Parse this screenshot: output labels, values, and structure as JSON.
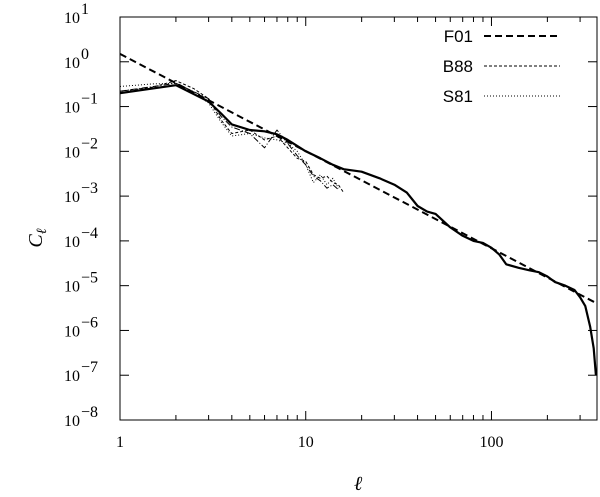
{
  "chart_data": {
    "type": "line",
    "title": "",
    "xlabel": "ℓ",
    "ylabel": "C",
    "ylabel_sub": "ℓ",
    "xscale": "log",
    "yscale": "log",
    "xlim": [
      1,
      370
    ],
    "ylim": [
      1e-08,
      10
    ],
    "grid": false,
    "legend_position": "top-right",
    "x_ticks": [
      {
        "value": 1,
        "label": "1"
      },
      {
        "value": 10,
        "label": "10"
      },
      {
        "value": 100,
        "label": "100"
      }
    ],
    "y_ticks": [
      {
        "value": 1e-08,
        "mantissa": "10",
        "exponent": "−8"
      },
      {
        "value": 1e-07,
        "mantissa": "10",
        "exponent": "−7"
      },
      {
        "value": 1e-06,
        "mantissa": "10",
        "exponent": "−6"
      },
      {
        "value": 1e-05,
        "mantissa": "10",
        "exponent": "−5"
      },
      {
        "value": 0.0001,
        "mantissa": "10",
        "exponent": "−4"
      },
      {
        "value": 0.001,
        "mantissa": "10",
        "exponent": "−3"
      },
      {
        "value": 0.01,
        "mantissa": "10",
        "exponent": "−2"
      },
      {
        "value": 0.1,
        "mantissa": "10",
        "exponent": "−1"
      },
      {
        "value": 1,
        "mantissa": "10",
        "exponent": "0"
      },
      {
        "value": 10,
        "mantissa": "10",
        "exponent": "1"
      }
    ],
    "series": [
      {
        "name": "",
        "style": "solid-thick",
        "points": [
          [
            1,
            0.2
          ],
          [
            2,
            0.3
          ],
          [
            3,
            0.13
          ],
          [
            3.5,
            0.07
          ],
          [
            4,
            0.04
          ],
          [
            5,
            0.03
          ],
          [
            6,
            0.028
          ],
          [
            7,
            0.024
          ],
          [
            8,
            0.018
          ],
          [
            10,
            0.01
          ],
          [
            12,
            0.007
          ],
          [
            14,
            0.005
          ],
          [
            16,
            0.004
          ],
          [
            20,
            0.0035
          ],
          [
            25,
            0.0025
          ],
          [
            30,
            0.0018
          ],
          [
            35,
            0.0012
          ],
          [
            40,
            0.0006
          ],
          [
            45,
            0.00045
          ],
          [
            50,
            0.0004
          ],
          [
            60,
            0.0002
          ],
          [
            70,
            0.00013
          ],
          [
            80,
            0.0001
          ],
          [
            90,
            9e-05
          ],
          [
            100,
            7e-05
          ],
          [
            110,
            5e-05
          ],
          [
            120,
            3e-05
          ],
          [
            140,
            2.5e-05
          ],
          [
            160,
            2.2e-05
          ],
          [
            180,
            2e-05
          ],
          [
            200,
            1.6e-05
          ],
          [
            220,
            1.2e-05
          ],
          [
            250,
            1e-05
          ],
          [
            280,
            8e-06
          ],
          [
            300,
            5.5e-06
          ],
          [
            320,
            3.5e-06
          ],
          [
            340,
            1.2e-06
          ],
          [
            355,
            4e-07
          ],
          [
            365,
            1e-07
          ]
        ]
      },
      {
        "name": "F01",
        "style": "long-dash",
        "points": [
          [
            1,
            1.5
          ],
          [
            370,
            4e-06
          ]
        ]
      },
      {
        "name": "B88",
        "style": "short-dash",
        "points": [
          [
            1,
            0.22
          ],
          [
            1.5,
            0.27
          ],
          [
            2,
            0.38
          ],
          [
            2.5,
            0.25
          ],
          [
            3,
            0.15
          ],
          [
            3.5,
            0.05
          ],
          [
            4,
            0.025
          ],
          [
            5,
            0.03
          ],
          [
            6,
            0.018
          ],
          [
            7,
            0.022
          ],
          [
            8,
            0.012
          ],
          [
            9,
            0.007
          ],
          [
            10,
            0.006
          ],
          [
            11,
            0.003
          ],
          [
            12,
            0.0025
          ],
          [
            13,
            0.0028
          ],
          [
            14,
            0.002
          ],
          [
            15,
            0.0018
          ],
          [
            16,
            0.0012
          ]
        ]
      },
      {
        "name": "S81",
        "style": "dotted",
        "points": [
          [
            1,
            0.28
          ],
          [
            1.5,
            0.32
          ],
          [
            2,
            0.33
          ],
          [
            2.5,
            0.2
          ],
          [
            3,
            0.12
          ],
          [
            3.5,
            0.045
          ],
          [
            4,
            0.022
          ],
          [
            5,
            0.025
          ],
          [
            6,
            0.02
          ],
          [
            7,
            0.018
          ],
          [
            8,
            0.015
          ],
          [
            9,
            0.01
          ],
          [
            10,
            0.005
          ],
          [
            11,
            0.002
          ],
          [
            12,
            0.003
          ],
          [
            13,
            0.0018
          ],
          [
            14,
            0.0025
          ],
          [
            15,
            0.0015
          ]
        ]
      },
      {
        "name": "",
        "style": "dash-dot",
        "points": [
          [
            1,
            0.22
          ],
          [
            2,
            0.33
          ],
          [
            3,
            0.15
          ],
          [
            3.5,
            0.06
          ],
          [
            4,
            0.035
          ],
          [
            5,
            0.025
          ],
          [
            6,
            0.012
          ],
          [
            7,
            0.03
          ],
          [
            8,
            0.015
          ],
          [
            9,
            0.008
          ],
          [
            10,
            0.005
          ],
          [
            11,
            0.0028
          ],
          [
            12,
            0.0022
          ],
          [
            13,
            0.0015
          ],
          [
            14,
            0.0018
          ],
          [
            15,
            0.0014
          ]
        ]
      }
    ]
  }
}
